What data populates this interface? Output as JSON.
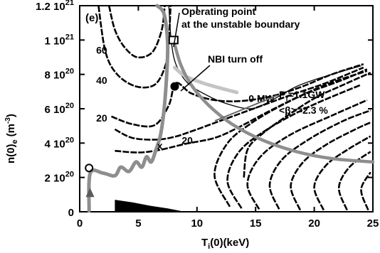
{
  "chart_data": {
    "type": "contour",
    "panel_label": "(e)",
    "xlabel_main": "T",
    "xlabel_sub": "i",
    "xlabel_rest": "(0)(keV)",
    "ylabel_main": "n(0)",
    "ylabel_sub": "e",
    "ylabel_unit": "(m",
    "ylabel_unit_sup": "-3",
    "ylabel_unit_end": ")",
    "xlim": [
      0,
      25
    ],
    "ylim": [
      0,
      1.2e+21
    ],
    "x_ticks": [
      {
        "value": 0,
        "label": "0"
      },
      {
        "value": 5,
        "label": "5"
      },
      {
        "value": 10,
        "label": "10"
      },
      {
        "value": 15,
        "label": "15"
      },
      {
        "value": 20,
        "label": "20"
      },
      {
        "value": 25,
        "label": "25"
      }
    ],
    "y_ticks": [
      {
        "value": 0,
        "mant": "0",
        "exp": ""
      },
      {
        "value": 2e+20,
        "mant": "2 10",
        "exp": "20"
      },
      {
        "value": 4e+20,
        "mant": "4 10",
        "exp": "20"
      },
      {
        "value": 6e+20,
        "mant": "6 10",
        "exp": "20"
      },
      {
        "value": 8e+20,
        "mant": "8 10",
        "exp": "20"
      },
      {
        "value": 1e+21,
        "mant": "1 10",
        "exp": "21"
      },
      {
        "value": 1.2e+21,
        "mant": "1.2 10",
        "exp": "21"
      }
    ],
    "contour_labels": [
      {
        "text": "60",
        "x": 1.4,
        "y": 9.2e+20
      },
      {
        "text": "40",
        "x": 1.4,
        "y": 7.45e+20
      },
      {
        "text": "20",
        "x": 1.4,
        "y": 5.25e+20
      },
      {
        "text": "20",
        "x": 8.7,
        "y": 3.95e+20
      },
      {
        "text": "0 MW",
        "x": 14.4,
        "y": 6.4e+20
      },
      {
        "text": "x",
        "x": 6.6,
        "y": 3.65e+20
      }
    ],
    "annotations": {
      "operating_point_line1": "Operating point",
      "operating_point_line2": "at the unstable boundary",
      "nbi_turn_off": "NBI turn off",
      "pf_main": "P",
      "pf_sub": "f",
      "pf_value": "=1.1GW",
      "beta_label": "<β>=2.3 %"
    },
    "markers": [
      {
        "name": "operating-point-marker",
        "shape": "square",
        "x": 8.0,
        "y": 1e+21
      },
      {
        "name": "nbi-turnoff-marker",
        "shape": "dot",
        "x": 8.1,
        "y": 7.3e+20
      },
      {
        "name": "start-circle-marker",
        "shape": "circle",
        "x": 0.8,
        "y": 2.55e+20
      }
    ],
    "contours": [
      {
        "label": "60",
        "points": [
          [
            2.5,
            1.2e+21
          ],
          [
            3.0,
            1.06e+21
          ],
          [
            3.8,
            9.6e+20
          ],
          [
            4.9,
            9e+20
          ],
          [
            6.2,
            9.3e+20
          ],
          [
            7.0,
            1.06e+21
          ],
          [
            7.25,
            1.2e+21
          ]
        ]
      },
      {
        "label": "40",
        "points": [
          [
            1.6,
            1.2e+21
          ],
          [
            2.2,
            9.3e+20
          ],
          [
            3.2,
            8e+20
          ],
          [
            4.8,
            7.3e+20
          ],
          [
            6.4,
            7.4e+20
          ],
          [
            7.3,
            8.5e+20
          ],
          [
            7.6,
            1e+21
          ],
          [
            7.75,
            1.2e+21
          ]
        ]
      },
      {
        "label": "20",
        "points": [
          [
            2.7,
            5.55e+20
          ],
          [
            4.5,
            5.1e+20
          ],
          [
            6.4,
            5.05e+20
          ],
          [
            7.6,
            6.2e+20
          ],
          [
            8.2,
            7.5e+20
          ],
          [
            9.5,
            6.9e+20
          ],
          [
            11.5,
            6.5e+20
          ],
          [
            13.8,
            6.45e+20
          ],
          [
            16.5,
            6.75e+20
          ],
          [
            19.0,
            7.3e+20
          ],
          [
            21.5,
            8e+20
          ],
          [
            24.2,
            8.6e+20
          ]
        ]
      },
      {
        "label": "contour-d",
        "points": [
          [
            3.0,
            4.8e+20
          ],
          [
            4.5,
            4.3e+20
          ],
          [
            6.5,
            4.2e+20
          ],
          [
            8.0,
            4.35e+20
          ],
          [
            9.6,
            4.7e+20
          ],
          [
            12.0,
            5.3e+20
          ],
          [
            15.0,
            6.05e+20
          ],
          [
            18.0,
            6.8e+20
          ],
          [
            21.0,
            7.5e+20
          ],
          [
            24.2,
            8.4e+20
          ]
        ]
      },
      {
        "label": "contour-e",
        "points": [
          [
            3.0,
            3.55e+20
          ],
          [
            5.0,
            3.45e+20
          ],
          [
            6.8,
            3.6e+20
          ],
          [
            9.0,
            3.95e+20
          ],
          [
            11.5,
            4.3e+20
          ],
          [
            13.5,
            4.9e+20
          ],
          [
            16.0,
            5.8e+20
          ],
          [
            19.0,
            6.8e+20
          ],
          [
            22.5,
            7.7e+20
          ],
          [
            24.5,
            8.3e+20
          ]
        ]
      },
      {
        "label": "0 MW",
        "points": [
          [
            14.0,
            2e+20
          ],
          [
            14.3,
            3.6e+20
          ],
          [
            15.5,
            4.5e+20
          ],
          [
            17.5,
            5.5e+20
          ],
          [
            20.0,
            6.6e+20
          ],
          [
            22.5,
            7.4e+20
          ],
          [
            24.8,
            8.1e+20
          ]
        ]
      },
      {
        "label": "nose-1",
        "points": [
          [
            12.8,
            3e+19
          ],
          [
            11.5,
            2.1e+20
          ],
          [
            12.5,
            3.9e+20
          ],
          [
            14.5,
            5.1e+20
          ],
          [
            17.5,
            6.3e+20
          ],
          [
            21.0,
            7.4e+20
          ],
          [
            24.5,
            8.2e+20
          ]
        ]
      },
      {
        "label": "nose-2",
        "points": [
          [
            13.8,
            2e+19
          ],
          [
            12.6,
            1.8e+20
          ],
          [
            13.6,
            3.5e+20
          ],
          [
            16.0,
            4.8e+20
          ],
          [
            19.5,
            6.1e+20
          ],
          [
            24.0,
            7.4e+20
          ]
        ]
      },
      {
        "label": "nose-3",
        "points": [
          [
            15.3,
            1.5e+19
          ],
          [
            14.3,
            1.6e+20
          ],
          [
            15.4,
            3.2e+20
          ],
          [
            18.0,
            4.5e+20
          ],
          [
            21.5,
            5.6e+20
          ],
          [
            24.5,
            6.5e+20
          ]
        ]
      },
      {
        "label": "nose-4",
        "points": [
          [
            17.0,
            1.5e+19
          ],
          [
            16.2,
            1.55e+20
          ],
          [
            17.2,
            3e+20
          ],
          [
            19.5,
            4.2e+20
          ],
          [
            22.5,
            5.3e+20
          ],
          [
            24.8,
            5.9e+20
          ]
        ]
      },
      {
        "label": "nose-5",
        "points": [
          [
            18.8,
            1e+19
          ],
          [
            18.0,
            1.5e+20
          ],
          [
            19.0,
            2.85e+20
          ],
          [
            21.0,
            3.9e+20
          ],
          [
            23.5,
            4.8e+20
          ],
          [
            24.8,
            5.2e+20
          ]
        ]
      },
      {
        "label": "nose-6",
        "points": [
          [
            20.8,
            1e+19
          ],
          [
            20.0,
            1.45e+20
          ],
          [
            21.0,
            2.7e+20
          ],
          [
            22.8,
            3.6e+20
          ],
          [
            24.8,
            4.4e+20
          ]
        ]
      },
      {
        "label": "nose-7",
        "points": [
          [
            22.8,
            1e+19
          ],
          [
            22.1,
            1.4e+20
          ],
          [
            23.0,
            2.6e+20
          ],
          [
            24.8,
            3.5e+20
          ]
        ]
      },
      {
        "label": "nose-8",
        "points": [
          [
            24.6,
            1e+19
          ],
          [
            24.0,
            1.3e+20
          ],
          [
            24.8,
            2.3e+20
          ]
        ]
      }
    ],
    "thin_trace": {
      "label": "P_f=1.1GW",
      "points": [
        [
          7.6,
          1.2e+21
        ],
        [
          7.8,
          1e+21
        ],
        [
          8.2,
          8.6e+20
        ],
        [
          9.2,
          7.5e+20
        ],
        [
          10.8,
          6.8e+20
        ],
        [
          12.5,
          6.3e+20
        ],
        [
          14.5,
          6e+20
        ],
        [
          16.0,
          6.35e+20
        ],
        [
          18.5,
          7.3e+20
        ],
        [
          21.0,
          7.9e+20
        ],
        [
          24.0,
          8.5e+20
        ]
      ]
    },
    "trajectories": [
      {
        "name": "light-trajectory",
        "points": [
          [
            8.1,
            8.4e+20
          ],
          [
            9.0,
            7.9e+20
          ],
          [
            10.5,
            7.5e+20
          ],
          [
            12.0,
            7.2e+20
          ],
          [
            13.4,
            6.95e+20
          ]
        ]
      },
      {
        "name": "operating-trajectory",
        "points": [
          [
            0.8,
            5e+18
          ],
          [
            0.9,
            2.25e+20
          ],
          [
            2.0,
            2.25e+20
          ],
          [
            3.0,
            2.1e+20
          ],
          [
            3.5,
            2.6e+20
          ],
          [
            4.2,
            2.35e+20
          ],
          [
            4.8,
            2.9e+20
          ],
          [
            5.3,
            2.6e+20
          ],
          [
            5.7,
            3.2e+20
          ],
          [
            6.1,
            2.9e+20
          ],
          [
            6.5,
            3.6e+20
          ],
          [
            6.9,
            4.5e+20
          ],
          [
            7.2,
            6e+20
          ],
          [
            7.4,
            7.8e+20
          ],
          [
            7.5,
            9.8e+20
          ],
          [
            7.2,
            1.15e+21
          ],
          [
            6.6,
            1.2e+21
          ]
        ]
      },
      {
        "name": "descent-trajectory",
        "points": [
          [
            8.0,
            1e+21
          ],
          [
            8.6,
            8.6e+20
          ],
          [
            9.5,
            7.4e+20
          ],
          [
            11.0,
            6.2e+20
          ],
          [
            13.0,
            5.1e+20
          ],
          [
            15.5,
            4.2e+20
          ],
          [
            18.5,
            3.5e+20
          ],
          [
            21.5,
            3.1e+20
          ],
          [
            25.0,
            2.9e+20
          ]
        ]
      }
    ],
    "shaded_region": {
      "points": [
        [
          3.0,
          0.0
        ],
        [
          3.0,
          7e+19
        ],
        [
          4.5,
          5.5e+19
        ],
        [
          6.0,
          3.5e+19
        ],
        [
          7.5,
          2e+19
        ],
        [
          8.6,
          5e+18
        ],
        [
          8.6,
          0.0
        ]
      ]
    }
  }
}
